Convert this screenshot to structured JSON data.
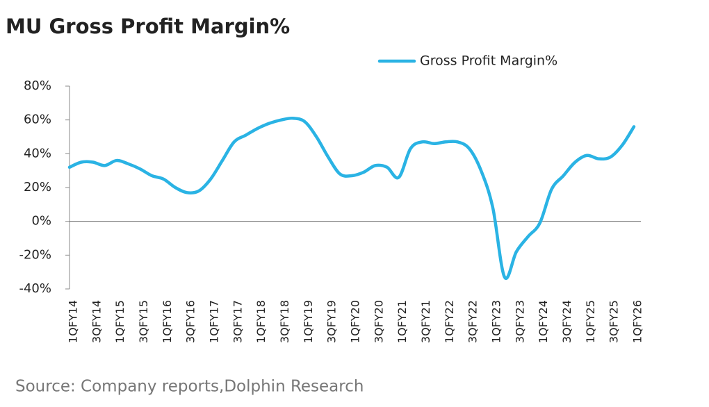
{
  "chart_data": {
    "type": "line",
    "title": "MU Gross Profit Margin%",
    "source": "Source: Company reports,Dolphin Research",
    "legend": "upper right",
    "categories": [
      "1QFY14",
      null,
      "3QFY14",
      null,
      "1QFY15",
      null,
      "3QFY15",
      null,
      "1QFY16",
      null,
      "3QFY16",
      null,
      "1QFY17",
      null,
      "3QFY17",
      null,
      "1QFY18",
      null,
      "3QFY18",
      null,
      "1QFY19",
      null,
      "3QFY19",
      null,
      "1QFY20",
      null,
      "3QFY20",
      null,
      "1QFY21",
      null,
      "3QFY21",
      null,
      "1QFY22",
      null,
      "3QFY22",
      null,
      "1QFY23",
      null,
      "3QFY23",
      null,
      "1QFY24",
      null,
      "3QFY24",
      null,
      "1QFY25",
      null,
      "3QFY25",
      null,
      "1QFY26"
    ],
    "series": [
      {
        "name": "Gross Profit Margin%",
        "color": "#2ab3e4",
        "values": [
          32,
          35,
          35,
          33,
          36,
          34,
          31,
          27,
          25,
          20,
          17,
          18,
          25,
          36,
          47,
          51,
          55,
          58,
          60,
          61,
          59,
          50,
          38,
          28,
          27,
          29,
          33,
          32,
          26,
          43,
          47,
          46,
          47,
          47,
          43,
          30,
          8,
          -33,
          -18,
          -9,
          -1,
          19,
          27,
          35,
          39,
          37,
          38,
          45,
          56
        ]
      }
    ],
    "ylim": [
      -40,
      80
    ],
    "yticks": [
      {
        "value": -40,
        "label": "-40%"
      },
      {
        "value": -20,
        "label": "-20%"
      },
      {
        "value": 0,
        "label": "0%"
      },
      {
        "value": 20,
        "label": "20%"
      },
      {
        "value": 40,
        "label": "40%"
      },
      {
        "value": 60,
        "label": "60%"
      },
      {
        "value": 80,
        "label": "80%"
      }
    ]
  }
}
